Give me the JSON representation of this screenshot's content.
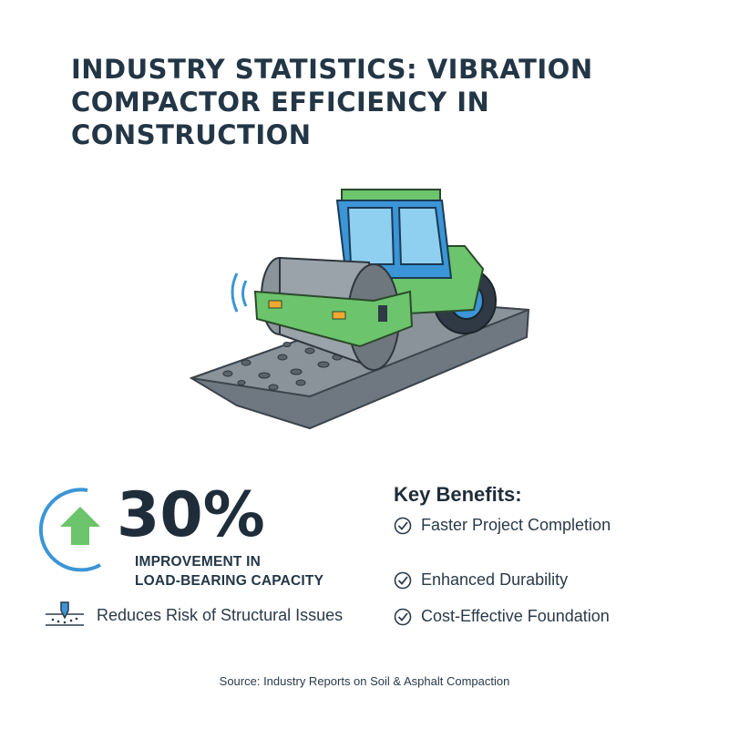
{
  "title": {
    "line1": "INDUSTRY STATISTICS: VIBRATION",
    "line2": "COMPACTOR EFFICIENCY IN",
    "line3": "CONSTRUCTION"
  },
  "illustration": {
    "icon": "vibration-roller-compactor"
  },
  "stat": {
    "value": "30%",
    "desc_line1": "IMPROVEMENT IN",
    "desc_line2": "LOAD-BEARING CAPACITY",
    "icon": "up-arrow-icon",
    "arrow_color": "#6cc46c",
    "ring_color": "#3b95d6"
  },
  "risk": {
    "text": "Reduces Risk of Structural Issues",
    "icon": "foundation-pile-icon"
  },
  "benefits": {
    "title": "Key Benefits:",
    "items": [
      "Faster Project Completion",
      "Enhanced Durability",
      "Cost-Effective Foundation"
    ],
    "icon": "check-circle-icon"
  },
  "source": "Source: Industry Reports on Soil & Asphalt Compaction",
  "colors": {
    "accent_green": "#6cc46c",
    "accent_blue": "#3b95d6",
    "text_dark": "#1f2d3a"
  }
}
